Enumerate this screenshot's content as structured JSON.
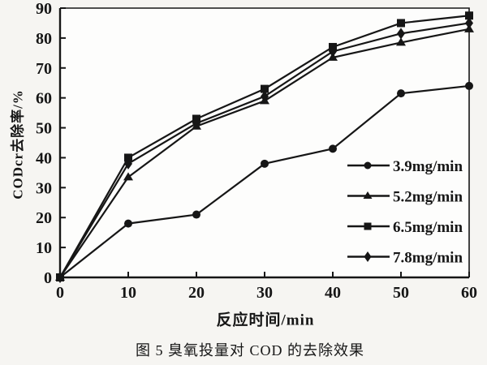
{
  "figure": {
    "caption": "图 5  臭氧投量对 COD 的去除效果"
  },
  "chart_data": {
    "type": "line",
    "title": "",
    "xlabel": "反应时间/min",
    "ylabel": "CODcr去除率/%",
    "xlim": [
      0,
      60
    ],
    "ylim": [
      0,
      90
    ],
    "x_ticks": [
      0,
      10,
      20,
      30,
      40,
      50,
      60
    ],
    "y_ticks": [
      0,
      10,
      20,
      30,
      40,
      50,
      60,
      70,
      80,
      90
    ],
    "grid": false,
    "legend_position": "inside-lower-right",
    "line_color": "#161616",
    "background_color": "#f6f5f2",
    "x": [
      0,
      10,
      20,
      30,
      40,
      50,
      60
    ],
    "series": [
      {
        "name": "3.9mg/min",
        "marker": "circle",
        "values": [
          0,
          18,
          21,
          38,
          43,
          61.5,
          64
        ]
      },
      {
        "name": "5.2mg/min",
        "marker": "triangle",
        "values": [
          0,
          33.5,
          50.5,
          59,
          73.5,
          78.5,
          83
        ]
      },
      {
        "name": "6.5mg/min",
        "marker": "square",
        "values": [
          0,
          40,
          53,
          63,
          77,
          85,
          87.5
        ]
      },
      {
        "name": "7.8mg/min",
        "marker": "diamond",
        "values": [
          0,
          38,
          51.5,
          60.5,
          75.5,
          81.5,
          85
        ]
      }
    ]
  }
}
